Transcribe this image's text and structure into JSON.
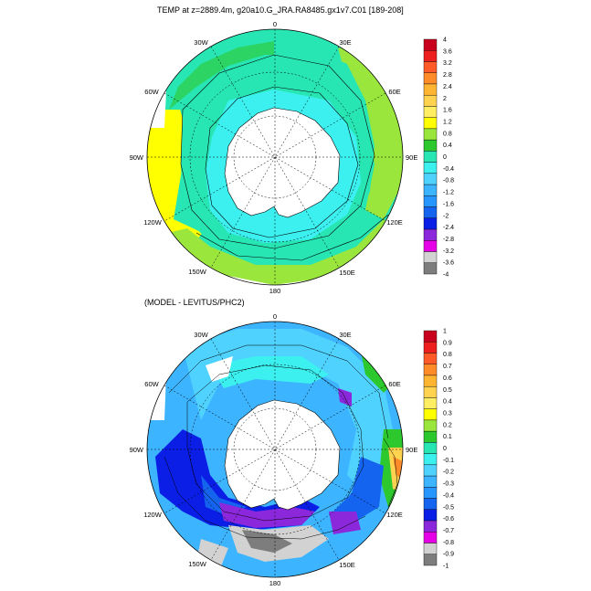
{
  "panels": [
    {
      "title": "TEMP at z=2889.4m, g20a10.G_JRA.RA8485.gx1v7.C01 [189-208]",
      "longitude_labels": [
        "0",
        "30E",
        "60E",
        "90E",
        "120E",
        "150E",
        "180",
        "150W",
        "120W",
        "90W",
        "60W",
        "30W"
      ],
      "colorbar": {
        "labels": [
          "4",
          "3.6",
          "3.2",
          "2.8",
          "2.4",
          "2",
          "1.6",
          "1.2",
          "0.8",
          "0.4",
          "0",
          "-0.4",
          "-0.8",
          "-1.2",
          "-1.6",
          "-2",
          "-2.4",
          "-2.8",
          "-3.2",
          "-3.6",
          "-4"
        ],
        "colors": [
          "#c8001e",
          "#ee1f1f",
          "#ff5a28",
          "#ff8c28",
          "#ffb432",
          "#ffd250",
          "#ffee64",
          "#ffff00",
          "#9be63c",
          "#2dc82d",
          "#28e6b4",
          "#3cf0f0",
          "#50d2ff",
          "#3cb4ff",
          "#2896ff",
          "#1464f0",
          "#0a1ee6",
          "#8c28dc",
          "#e600e6",
          "#d2d2d2"
        ],
        "extra_color": "#7d7d7d"
      }
    },
    {
      "title": "(MODEL - LEVITUS/PHC2)",
      "longitude_labels": [
        "0",
        "30E",
        "60E",
        "90E",
        "120E",
        "150E",
        "180",
        "150W",
        "120W",
        "90W",
        "60W",
        "30W"
      ],
      "colorbar": {
        "labels": [
          "1",
          "0.9",
          "0.8",
          "0.7",
          "0.6",
          "0.5",
          "0.4",
          "0.3",
          "0.2",
          "0.1",
          "0",
          "-0.1",
          "-0.2",
          "-0.3",
          "-0.4",
          "-0.5",
          "-0.6",
          "-0.7",
          "-0.8",
          "-0.9",
          "-1"
        ],
        "colors": [
          "#c8001e",
          "#ee1f1f",
          "#ff5a28",
          "#ff8c28",
          "#ffb432",
          "#ffd250",
          "#ffee64",
          "#ffff00",
          "#9be63c",
          "#2dc82d",
          "#28e6b4",
          "#3cf0f0",
          "#50d2ff",
          "#3cb4ff",
          "#2896ff",
          "#1464f0",
          "#0a1ee6",
          "#8c28dc",
          "#e600e6",
          "#d2d2d2"
        ],
        "extra_color": "#7d7d7d"
      }
    }
  ]
}
